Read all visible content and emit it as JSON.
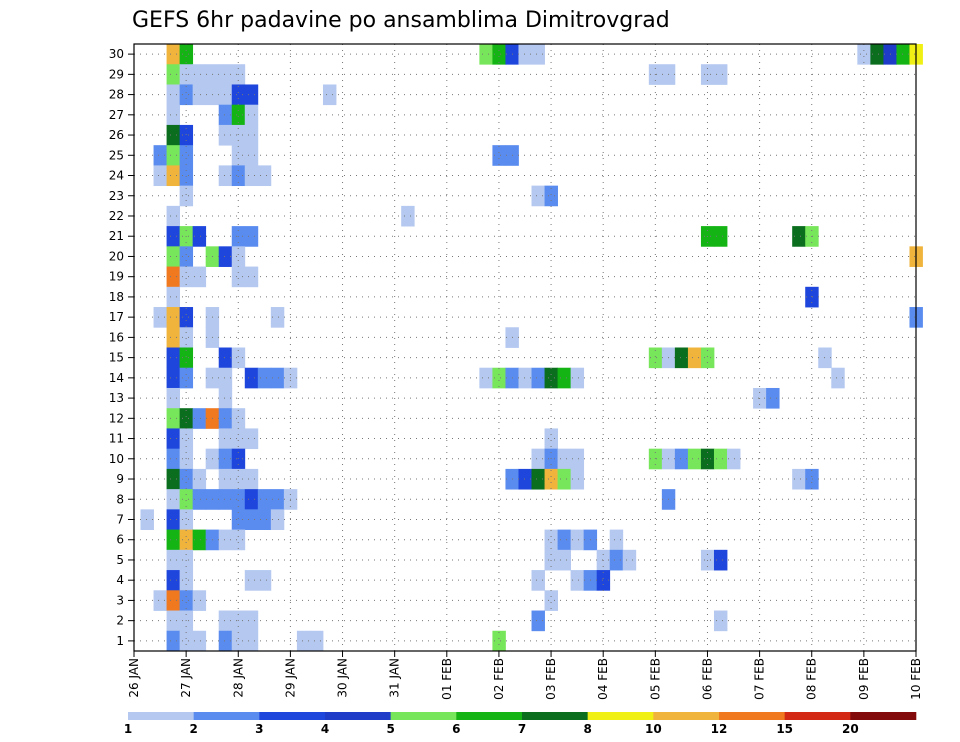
{
  "chart_data": {
    "type": "heatmap",
    "title": "GEFS 6hr padavine po ansamblima Dimitrovgrad",
    "xlabel": "",
    "ylabel": "",
    "x_ticks": [
      "26 JAN",
      "27 JAN",
      "28 JAN",
      "29 JAN",
      "30 JAN",
      "31 JAN",
      "01 FEB",
      "02 FEB",
      "03 FEB",
      "04 FEB",
      "05 FEB",
      "06 FEB",
      "07 FEB",
      "08 FEB",
      "09 FEB",
      "10 FEB"
    ],
    "y_ticks": [
      "1",
      "2",
      "3",
      "4",
      "5",
      "6",
      "7",
      "8",
      "9",
      "10",
      "11",
      "12",
      "13",
      "14",
      "15",
      "16",
      "17",
      "18",
      "19",
      "20",
      "21",
      "22",
      "23",
      "24",
      "25",
      "26",
      "27",
      "28",
      "29",
      "30"
    ],
    "x_range_steps": [
      0,
      60
    ],
    "y_range": [
      1,
      30
    ],
    "time_step_hours": 6,
    "grid": true,
    "levels": [
      "1",
      "2",
      "3",
      "4",
      "5",
      "6",
      "7",
      "8",
      "10",
      "12",
      "15",
      "20"
    ],
    "colors": [
      "#b4c8f0",
      "#5a8cf0",
      "#1e46dc",
      "#1e3cc8",
      "#78e65a",
      "#14b414",
      "#0a6e1e",
      "#f0f014",
      "#f0b43c",
      "#f0781e",
      "#d22814",
      "#820a0a"
    ],
    "legend_position": "bottom",
    "cells": [
      [
        30,
        3,
        8
      ],
      [
        30,
        4,
        5
      ],
      [
        30,
        27,
        4
      ],
      [
        30,
        28,
        5
      ],
      [
        30,
        29,
        2
      ],
      [
        30,
        30,
        0
      ],
      [
        30,
        31,
        0
      ],
      [
        30,
        56,
        0
      ],
      [
        30,
        57,
        6
      ],
      [
        30,
        58,
        3
      ],
      [
        30,
        59,
        5
      ],
      [
        30,
        60,
        7
      ],
      [
        29,
        3,
        4
      ],
      [
        29,
        4,
        0
      ],
      [
        29,
        5,
        0
      ],
      [
        29,
        6,
        0
      ],
      [
        29,
        7,
        0
      ],
      [
        29,
        8,
        0
      ],
      [
        29,
        40,
        0
      ],
      [
        29,
        41,
        0
      ],
      [
        29,
        44,
        0
      ],
      [
        29,
        45,
        0
      ],
      [
        28,
        3,
        0
      ],
      [
        28,
        4,
        1
      ],
      [
        28,
        5,
        0
      ],
      [
        28,
        6,
        0
      ],
      [
        28,
        7,
        0
      ],
      [
        28,
        8,
        2
      ],
      [
        28,
        9,
        2
      ],
      [
        28,
        15,
        0
      ],
      [
        27,
        3,
        0
      ],
      [
        27,
        7,
        1
      ],
      [
        27,
        8,
        5
      ],
      [
        27,
        9,
        0
      ],
      [
        26,
        3,
        6
      ],
      [
        26,
        4,
        2
      ],
      [
        26,
        7,
        0
      ],
      [
        26,
        8,
        0
      ],
      [
        26,
        9,
        0
      ],
      [
        25,
        2,
        1
      ],
      [
        25,
        3,
        4
      ],
      [
        25,
        4,
        1
      ],
      [
        25,
        8,
        0
      ],
      [
        25,
        9,
        0
      ],
      [
        25,
        28,
        1
      ],
      [
        25,
        29,
        1
      ],
      [
        24,
        2,
        0
      ],
      [
        24,
        3,
        8
      ],
      [
        24,
        4,
        1
      ],
      [
        24,
        7,
        0
      ],
      [
        24,
        8,
        1
      ],
      [
        24,
        9,
        0
      ],
      [
        24,
        10,
        0
      ],
      [
        23,
        4,
        0
      ],
      [
        23,
        31,
        0
      ],
      [
        23,
        32,
        1
      ],
      [
        22,
        3,
        0
      ],
      [
        22,
        21,
        0
      ],
      [
        21,
        3,
        2
      ],
      [
        21,
        4,
        4
      ],
      [
        21,
        5,
        2
      ],
      [
        21,
        8,
        1
      ],
      [
        21,
        9,
        1
      ],
      [
        21,
        44,
        5
      ],
      [
        21,
        45,
        5
      ],
      [
        21,
        51,
        6
      ],
      [
        21,
        52,
        4
      ],
      [
        20,
        3,
        4
      ],
      [
        20,
        4,
        1
      ],
      [
        20,
        6,
        4
      ],
      [
        20,
        7,
        2
      ],
      [
        20,
        8,
        0
      ],
      [
        20,
        60,
        8
      ],
      [
        19,
        3,
        9
      ],
      [
        19,
        4,
        0
      ],
      [
        19,
        5,
        0
      ],
      [
        19,
        8,
        0
      ],
      [
        19,
        9,
        0
      ],
      [
        18,
        3,
        0
      ],
      [
        18,
        52,
        2
      ],
      [
        17,
        2,
        0
      ],
      [
        17,
        3,
        8
      ],
      [
        17,
        4,
        2
      ],
      [
        17,
        6,
        0
      ],
      [
        17,
        11,
        0
      ],
      [
        17,
        60,
        1
      ],
      [
        16,
        3,
        8
      ],
      [
        16,
        4,
        0
      ],
      [
        16,
        6,
        0
      ],
      [
        16,
        29,
        0
      ],
      [
        15,
        3,
        2
      ],
      [
        15,
        4,
        5
      ],
      [
        15,
        7,
        2
      ],
      [
        15,
        8,
        0
      ],
      [
        15,
        40,
        4
      ],
      [
        15,
        41,
        0
      ],
      [
        15,
        42,
        6
      ],
      [
        15,
        43,
        8
      ],
      [
        15,
        44,
        4
      ],
      [
        15,
        53,
        0
      ],
      [
        14,
        3,
        2
      ],
      [
        14,
        4,
        1
      ],
      [
        14,
        6,
        0
      ],
      [
        14,
        7,
        0
      ],
      [
        14,
        9,
        2
      ],
      [
        14,
        10,
        1
      ],
      [
        14,
        11,
        1
      ],
      [
        14,
        12,
        0
      ],
      [
        14,
        27,
        0
      ],
      [
        14,
        28,
        4
      ],
      [
        14,
        29,
        1
      ],
      [
        14,
        30,
        0
      ],
      [
        14,
        31,
        1
      ],
      [
        14,
        32,
        6
      ],
      [
        14,
        33,
        5
      ],
      [
        14,
        34,
        0
      ],
      [
        14,
        54,
        0
      ],
      [
        13,
        3,
        0
      ],
      [
        13,
        7,
        0
      ],
      [
        13,
        48,
        0
      ],
      [
        13,
        49,
        1
      ],
      [
        12,
        3,
        4
      ],
      [
        12,
        4,
        6
      ],
      [
        12,
        5,
        1
      ],
      [
        12,
        6,
        9
      ],
      [
        12,
        7,
        1
      ],
      [
        12,
        8,
        0
      ],
      [
        11,
        3,
        2
      ],
      [
        11,
        4,
        0
      ],
      [
        11,
        7,
        0
      ],
      [
        11,
        8,
        0
      ],
      [
        11,
        9,
        0
      ],
      [
        11,
        32,
        0
      ],
      [
        10,
        3,
        1
      ],
      [
        10,
        4,
        0
      ],
      [
        10,
        6,
        0
      ],
      [
        10,
        7,
        1
      ],
      [
        10,
        8,
        2
      ],
      [
        10,
        31,
        0
      ],
      [
        10,
        32,
        1
      ],
      [
        10,
        33,
        0
      ],
      [
        10,
        34,
        0
      ],
      [
        10,
        40,
        4
      ],
      [
        10,
        41,
        0
      ],
      [
        10,
        42,
        1
      ],
      [
        10,
        43,
        4
      ],
      [
        10,
        44,
        6
      ],
      [
        10,
        45,
        4
      ],
      [
        10,
        46,
        0
      ],
      [
        9,
        3,
        6
      ],
      [
        9,
        4,
        1
      ],
      [
        9,
        5,
        0
      ],
      [
        9,
        7,
        0
      ],
      [
        9,
        8,
        0
      ],
      [
        9,
        9,
        0
      ],
      [
        9,
        29,
        1
      ],
      [
        9,
        30,
        2
      ],
      [
        9,
        31,
        6
      ],
      [
        9,
        32,
        8
      ],
      [
        9,
        33,
        4
      ],
      [
        9,
        34,
        0
      ],
      [
        9,
        51,
        0
      ],
      [
        9,
        52,
        1
      ],
      [
        8,
        3,
        0
      ],
      [
        8,
        4,
        4
      ],
      [
        8,
        5,
        1
      ],
      [
        8,
        6,
        1
      ],
      [
        8,
        7,
        1
      ],
      [
        8,
        8,
        1
      ],
      [
        8,
        9,
        2
      ],
      [
        8,
        10,
        1
      ],
      [
        8,
        11,
        1
      ],
      [
        8,
        12,
        0
      ],
      [
        8,
        41,
        1
      ],
      [
        7,
        1,
        0
      ],
      [
        7,
        3,
        2
      ],
      [
        7,
        4,
        0
      ],
      [
        7,
        8,
        1
      ],
      [
        7,
        9,
        1
      ],
      [
        7,
        10,
        1
      ],
      [
        7,
        11,
        0
      ],
      [
        6,
        3,
        5
      ],
      [
        6,
        4,
        8
      ],
      [
        6,
        5,
        5
      ],
      [
        6,
        6,
        1
      ],
      [
        6,
        7,
        0
      ],
      [
        6,
        8,
        0
      ],
      [
        6,
        32,
        0
      ],
      [
        6,
        33,
        1
      ],
      [
        6,
        34,
        0
      ],
      [
        6,
        35,
        1
      ],
      [
        6,
        37,
        0
      ],
      [
        5,
        3,
        0
      ],
      [
        5,
        4,
        0
      ],
      [
        5,
        32,
        0
      ],
      [
        5,
        33,
        0
      ],
      [
        5,
        36,
        0
      ],
      [
        5,
        37,
        1
      ],
      [
        5,
        38,
        0
      ],
      [
        5,
        44,
        0
      ],
      [
        5,
        45,
        2
      ],
      [
        4,
        3,
        2
      ],
      [
        4,
        4,
        0
      ],
      [
        4,
        9,
        0
      ],
      [
        4,
        10,
        0
      ],
      [
        4,
        31,
        0
      ],
      [
        4,
        34,
        0
      ],
      [
        4,
        35,
        1
      ],
      [
        4,
        36,
        2
      ],
      [
        3,
        2,
        0
      ],
      [
        3,
        3,
        9
      ],
      [
        3,
        4,
        1
      ],
      [
        3,
        5,
        0
      ],
      [
        3,
        32,
        0
      ],
      [
        2,
        3,
        0
      ],
      [
        2,
        4,
        0
      ],
      [
        2,
        7,
        0
      ],
      [
        2,
        8,
        0
      ],
      [
        2,
        9,
        0
      ],
      [
        2,
        31,
        1
      ],
      [
        2,
        45,
        0
      ],
      [
        1,
        3,
        1
      ],
      [
        1,
        4,
        0
      ],
      [
        1,
        5,
        0
      ],
      [
        1,
        7,
        1
      ],
      [
        1,
        8,
        0
      ],
      [
        1,
        9,
        0
      ],
      [
        1,
        13,
        0
      ],
      [
        1,
        14,
        0
      ],
      [
        1,
        28,
        4
      ]
    ]
  }
}
